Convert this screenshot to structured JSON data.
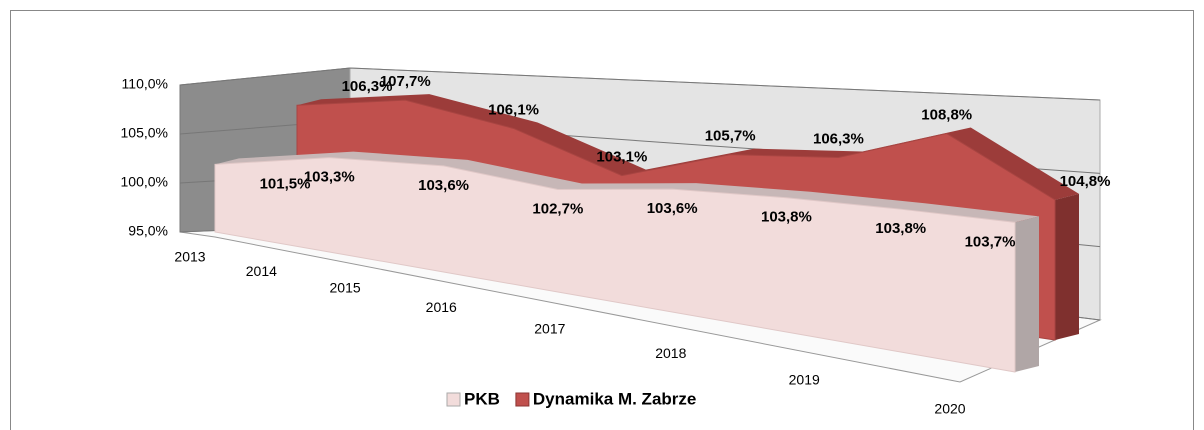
{
  "chart_data": {
    "type": "area3d",
    "categories": [
      "2013",
      "2014",
      "2015",
      "2016",
      "2017",
      "2018",
      "2019",
      "2020"
    ],
    "series": [
      {
        "name": "PKB",
        "color": "#f2dcdb",
        "values": [
          101.5,
          103.3,
          103.6,
          102.7,
          103.6,
          103.8,
          103.8,
          103.7
        ],
        "value_labels": [
          "101,5%",
          "103,3%",
          "103,6%",
          "102,7%",
          "103,6%",
          "103,8%",
          "103,8%",
          "103,7%"
        ]
      },
      {
        "name": "Dynamika M. Zabrze",
        "color": "#c0504d",
        "values": [
          106.3,
          107.7,
          106.1,
          103.1,
          105.7,
          106.3,
          108.8,
          104.8
        ],
        "value_labels": [
          "106,3%",
          "107,7%",
          "106,1%",
          "103,1%",
          "105,7%",
          "106,3%",
          "108,8%",
          "104,8%"
        ]
      }
    ],
    "ylim": [
      95,
      110
    ],
    "yticks": [
      {
        "value": 95,
        "label": "95,0%"
      },
      {
        "value": 100,
        "label": "100,0%"
      },
      {
        "value": 105,
        "label": "105,0%"
      },
      {
        "value": 110,
        "label": "110,0%"
      }
    ],
    "grid": true,
    "legend": "bottom"
  }
}
